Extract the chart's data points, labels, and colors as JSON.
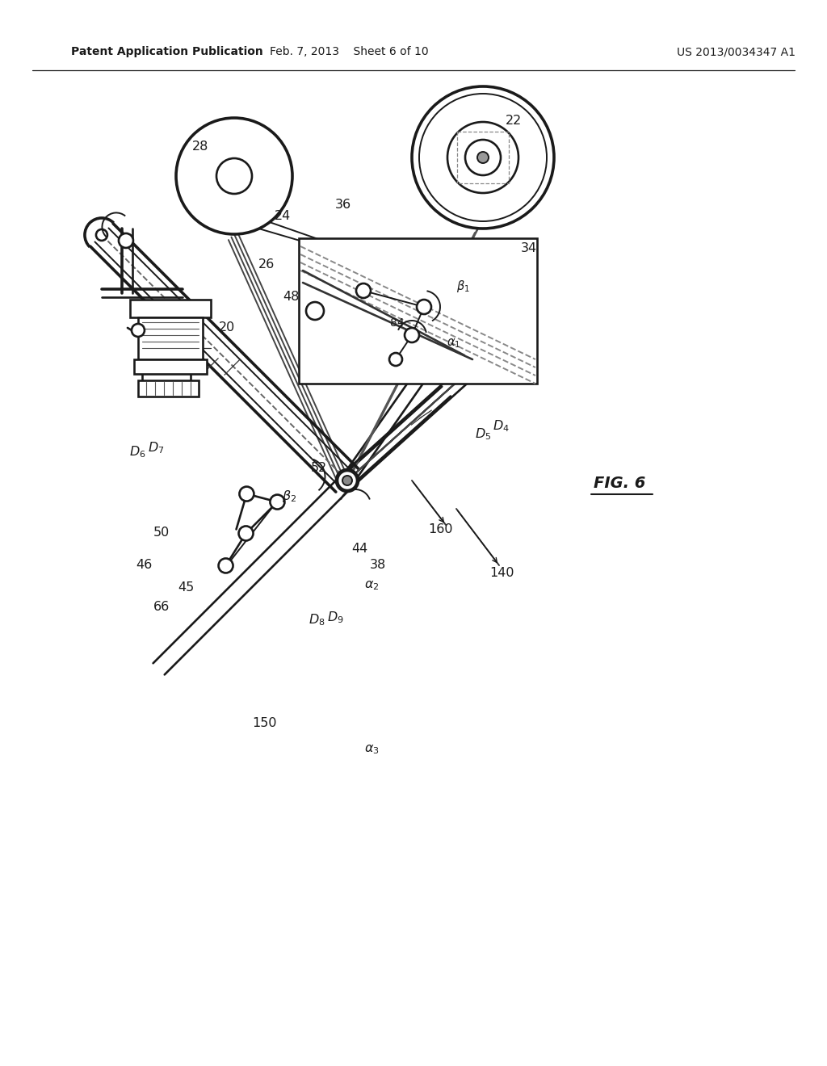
{
  "header_left": "Patent Application Publication",
  "header_center": "Feb. 7, 2013    Sheet 6 of 10",
  "header_right": "US 2013/0034347 A1",
  "fig_label": "FIG. 6",
  "bg": "#ffffff",
  "lc": "#1a1a1a"
}
